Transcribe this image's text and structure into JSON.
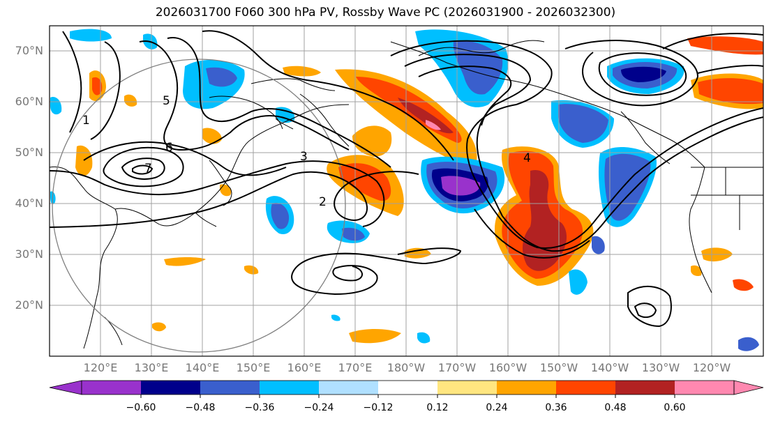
{
  "title": "2026031700 F060 300 hPa PV, Rossby Wave PC (2026031900 - 2026032300)",
  "map": {
    "lat_labels": [
      "70°N",
      "60°N",
      "50°N",
      "40°N",
      "30°N",
      "20°N"
    ],
    "lon_labels": [
      "120°E",
      "130°E",
      "140°E",
      "150°E",
      "160°E",
      "170°E",
      "180°W",
      "170°W",
      "160°W",
      "150°W",
      "140°W",
      "130°W",
      "120°W"
    ],
    "contour_labels": [
      "1",
      "2",
      "3",
      "4",
      "5",
      "6",
      "7"
    ],
    "colors": {
      "land_outline": "#000000",
      "grid": "#a0a0a0",
      "range_circle": "#808080",
      "contour": "#000000"
    }
  },
  "colorbar": {
    "ticks": [
      "−0.60",
      "−0.48",
      "−0.36",
      "−0.24",
      "−0.12",
      "0.12",
      "0.24",
      "0.36",
      "0.48",
      "0.60"
    ],
    "colors": [
      "#9932cc",
      "#00008b",
      "#3a5fcd",
      "#00bfff",
      "#b0e0ff",
      "#ffffff",
      "#ffe680",
      "#ffa500",
      "#ff4500",
      "#b22222",
      "#ff88b0"
    ]
  }
}
